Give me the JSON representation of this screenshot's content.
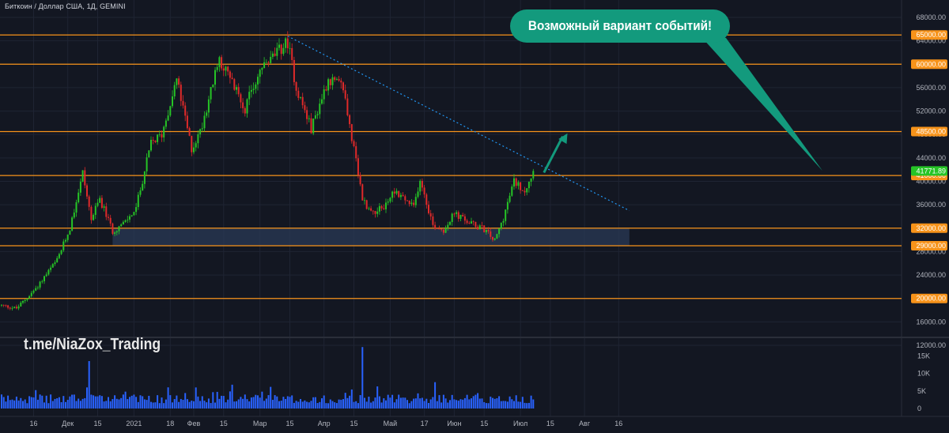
{
  "header": {
    "symbol_title": "Биткоин / Доллар США, 1Д, GEMINI"
  },
  "watermark": "t.me/NiaZox_Trading",
  "callout": {
    "text": "Возможный вариант событий!"
  },
  "colors": {
    "background": "#131722",
    "grid": "#1f2433",
    "level_line": "#f7931a",
    "bull_candle": "#26c426",
    "bear_candle": "#e02a2a",
    "volume_bar": "#2962ff",
    "support_zone": "#2a3a55",
    "trendline": "#2196f3",
    "callout_fill": "#139a7d",
    "projection_arrow": "#139a7d",
    "axis_text": "#b2b5be",
    "current_price_tag": "#26c426"
  },
  "chart_data": {
    "type": "candlestick",
    "title": "Биткоин / Доллар США, 1Д, GEMINI",
    "price_axis": {
      "ylim": [
        10000,
        70000
      ],
      "ticks": [
        12000,
        16000,
        20000,
        24000,
        28000,
        32000,
        36000,
        40000,
        44000,
        48000,
        52000,
        56000,
        60000,
        64000,
        68000
      ],
      "tick_labels": [
        "12000.00",
        "16000.00",
        "20000.00",
        "24000.00",
        "28000.00",
        "32000.00",
        "36000.00",
        "40000.00",
        "44000.00",
        "48000.00",
        "52000.00",
        "56000.00",
        "60000.00",
        "64000.00",
        "68000.00"
      ]
    },
    "x_axis": {
      "start_date": "2020-12-01",
      "tick_labels": [
        {
          "date": "2020-12-16",
          "label": "16"
        },
        {
          "date": "2021-01-01",
          "label": "Дек"
        },
        {
          "date": "2021-01-15",
          "label": "15"
        },
        {
          "date": "2021-02-01",
          "label": "2021"
        },
        {
          "date": "2021-02-18",
          "label": "18"
        },
        {
          "date": "2021-03-01",
          "label": "Фев"
        },
        {
          "date": "2021-03-15",
          "label": "15"
        },
        {
          "date": "2021-04-01",
          "label": "Мар"
        },
        {
          "date": "2021-04-15",
          "label": "15"
        },
        {
          "date": "2021-05-01",
          "label": "Апр"
        },
        {
          "date": "2021-05-15",
          "label": "15"
        },
        {
          "date": "2021-06-01",
          "label": "Май"
        },
        {
          "date": "2021-06-17",
          "label": "17"
        },
        {
          "date": "2021-07-01",
          "label": "Июн"
        },
        {
          "date": "2021-07-15",
          "label": "15"
        },
        {
          "date": "2021-08-01",
          "label": "Июл"
        },
        {
          "date": "2021-08-15",
          "label": "15"
        },
        {
          "date": "2021-08-31",
          "label": "Авг"
        },
        {
          "date": "2021-09-16",
          "label": "16"
        }
      ]
    },
    "levels": [
      {
        "value": 65000,
        "label": "65000.00"
      },
      {
        "value": 60000,
        "label": "60000.00"
      },
      {
        "value": 48500,
        "label": "48500.00"
      },
      {
        "value": 41000,
        "label": "41000.00"
      },
      {
        "value": 32000,
        "label": "32000.00"
      },
      {
        "value": 29000,
        "label": "29000.00"
      },
      {
        "value": 20000,
        "label": "20000.00"
      }
    ],
    "current_price": {
      "value": 41771.89,
      "label": "41771.89"
    },
    "support_zone": {
      "from": 29000,
      "to": 32000,
      "start_date": "2021-01-22",
      "end_date": "2021-09-21"
    },
    "trendline": {
      "from": {
        "date": "2021-04-14",
        "price": 64800
      },
      "to": {
        "date": "2021-09-21",
        "price": 35000
      }
    },
    "projection_arrow": {
      "from": {
        "date": "2021-08-12",
        "price": 41500
      },
      "to": {
        "date": "2021-08-23",
        "price": 48200
      }
    },
    "price_path": [
      [
        "2020-12-01",
        18800
      ],
      [
        "2020-12-08",
        18300
      ],
      [
        "2020-12-16",
        21300
      ],
      [
        "2020-12-27",
        26500
      ],
      [
        "2021-01-02",
        32000
      ],
      [
        "2021-01-08",
        41500
      ],
      [
        "2021-01-12",
        33500
      ],
      [
        "2021-01-16",
        37000
      ],
      [
        "2021-01-22",
        31500
      ],
      [
        "2021-01-28",
        33000
      ],
      [
        "2021-02-02",
        35500
      ],
      [
        "2021-02-09",
        46500
      ],
      [
        "2021-02-14",
        48000
      ],
      [
        "2021-02-21",
        57500
      ],
      [
        "2021-02-28",
        45500
      ],
      [
        "2021-03-04",
        48500
      ],
      [
        "2021-03-13",
        61000
      ],
      [
        "2021-03-25",
        52500
      ],
      [
        "2021-04-01",
        59000
      ],
      [
        "2021-04-14",
        63800
      ],
      [
        "2021-04-18",
        56000
      ],
      [
        "2021-04-25",
        49000
      ],
      [
        "2021-05-03",
        57500
      ],
      [
        "2021-05-10",
        56000
      ],
      [
        "2021-05-13",
        49500
      ],
      [
        "2021-05-19",
        37000
      ],
      [
        "2021-05-23",
        34800
      ],
      [
        "2021-05-29",
        35500
      ],
      [
        "2021-06-03",
        38500
      ],
      [
        "2021-06-12",
        35500
      ],
      [
        "2021-06-15",
        40500
      ],
      [
        "2021-06-21",
        32500
      ],
      [
        "2021-06-26",
        31700
      ],
      [
        "2021-07-01",
        34500
      ],
      [
        "2021-07-08",
        32900
      ],
      [
        "2021-07-15",
        31800
      ],
      [
        "2021-07-20",
        29800
      ],
      [
        "2021-07-24",
        33800
      ],
      [
        "2021-07-29",
        40000
      ],
      [
        "2021-08-03",
        38500
      ],
      [
        "2021-08-07",
        41771.89
      ]
    ],
    "volume_axis": {
      "ylim": [
        0,
        18000
      ],
      "ticks": [
        0,
        5000,
        10000,
        15000
      ],
      "tick_labels": [
        "0",
        "5K",
        "10K",
        "15K"
      ]
    },
    "volume_spikes": [
      {
        "date": "2021-01-11",
        "value": 13500
      },
      {
        "date": "2021-05-19",
        "value": 17500
      },
      {
        "date": "2021-06-22",
        "value": 7500
      },
      {
        "date": "2021-03-02",
        "value": 6000
      }
    ]
  }
}
